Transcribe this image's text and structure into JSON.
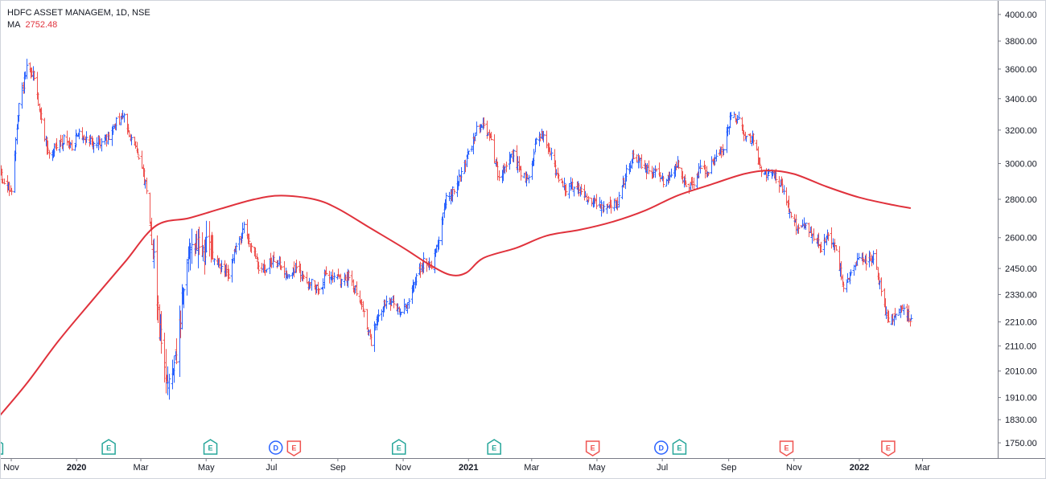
{
  "header": {
    "title": "HDFC ASSET MANAGEM, 1D, NSE",
    "ma_label": "MA",
    "ma_value": "2752.48"
  },
  "colors": {
    "up": "#2962ff",
    "down": "#ef5350",
    "ma": "#e0323c",
    "earnings_up": "#26a69a",
    "earnings_down": "#ef5350",
    "dividend": "#2962ff",
    "axis_border": "#787b86",
    "text": "#131722"
  },
  "chart_data": {
    "type": "ohlc-bar",
    "symbol": "HDFC ASSET MANAGEM",
    "interval": "1D",
    "exchange": "NSE",
    "price_scale": "log",
    "ylim": [
      1700,
      4100
    ],
    "y_ticks": [
      "4000.00",
      "3800.00",
      "3600.00",
      "3400.00",
      "3200.00",
      "3000.00",
      "2800.00",
      "2600.00",
      "2450.00",
      "2330.00",
      "2210.00",
      "2110.00",
      "2010.00",
      "1910.00",
      "1830.00",
      "1750.00"
    ],
    "x_ticks": [
      {
        "label": "Nov",
        "date": "2019-11-01",
        "bold": false
      },
      {
        "label": "2020",
        "date": "2020-01-01",
        "bold": true
      },
      {
        "label": "Mar",
        "date": "2020-03-01",
        "bold": false
      },
      {
        "label": "May",
        "date": "2020-05-01",
        "bold": false
      },
      {
        "label": "Jul",
        "date": "2020-07-01",
        "bold": false
      },
      {
        "label": "Sep",
        "date": "2020-09-01",
        "bold": false
      },
      {
        "label": "Nov",
        "date": "2020-11-01",
        "bold": false
      },
      {
        "label": "2021",
        "date": "2021-01-01",
        "bold": true
      },
      {
        "label": "Mar",
        "date": "2021-03-01",
        "bold": false
      },
      {
        "label": "May",
        "date": "2021-05-01",
        "bold": false
      },
      {
        "label": "Jul",
        "date": "2021-07-01",
        "bold": false
      },
      {
        "label": "Sep",
        "date": "2021-09-01",
        "bold": false
      },
      {
        "label": "Nov",
        "date": "2021-11-01",
        "bold": false
      },
      {
        "label": "2022",
        "date": "2022-01-01",
        "bold": true
      },
      {
        "label": "Mar",
        "date": "2022-03-01",
        "bold": false
      }
    ],
    "close_path": [
      [
        "2019-10-18",
        3050
      ],
      [
        "2019-10-25",
        2880
      ],
      [
        "2019-11-01",
        2850
      ],
      [
        "2019-11-08",
        3350
      ],
      [
        "2019-11-15",
        3600
      ],
      [
        "2019-11-22",
        3550
      ],
      [
        "2019-11-29",
        3250
      ],
      [
        "2019-12-06",
        3050
      ],
      [
        "2019-12-13",
        3100
      ],
      [
        "2019-12-20",
        3150
      ],
      [
        "2019-12-27",
        3100
      ],
      [
        "2020-01-03",
        3180
      ],
      [
        "2020-01-17",
        3120
      ],
      [
        "2020-01-31",
        3150
      ],
      [
        "2020-02-07",
        3250
      ],
      [
        "2020-02-14",
        3280
      ],
      [
        "2020-02-21",
        3150
      ],
      [
        "2020-02-28",
        3050
      ],
      [
        "2020-03-06",
        2850
      ],
      [
        "2020-03-13",
        2500
      ],
      [
        "2020-03-20",
        2100
      ],
      [
        "2020-03-27",
        1950
      ],
      [
        "2020-04-03",
        2050
      ],
      [
        "2020-04-10",
        2350
      ],
      [
        "2020-04-17",
        2600
      ],
      [
        "2020-04-24",
        2550
      ],
      [
        "2020-05-01",
        2550
      ],
      [
        "2020-05-08",
        2500
      ],
      [
        "2020-05-15",
        2450
      ],
      [
        "2020-05-22",
        2420
      ],
      [
        "2020-05-29",
        2550
      ],
      [
        "2020-06-05",
        2650
      ],
      [
        "2020-06-12",
        2560
      ],
      [
        "2020-06-19",
        2450
      ],
      [
        "2020-06-26",
        2450
      ],
      [
        "2020-07-03",
        2500
      ],
      [
        "2020-07-10",
        2450
      ],
      [
        "2020-07-17",
        2420
      ],
      [
        "2020-07-24",
        2450
      ],
      [
        "2020-07-31",
        2400
      ],
      [
        "2020-08-07",
        2380
      ],
      [
        "2020-08-14",
        2350
      ],
      [
        "2020-08-21",
        2420
      ],
      [
        "2020-08-28",
        2430
      ],
      [
        "2020-09-04",
        2380
      ],
      [
        "2020-09-11",
        2420
      ],
      [
        "2020-09-18",
        2350
      ],
      [
        "2020-09-25",
        2250
      ],
      [
        "2020-10-02",
        2120
      ],
      [
        "2020-10-09",
        2250
      ],
      [
        "2020-10-16",
        2300
      ],
      [
        "2020-10-23",
        2280
      ],
      [
        "2020-10-30",
        2250
      ],
      [
        "2020-11-06",
        2300
      ],
      [
        "2020-11-13",
        2420
      ],
      [
        "2020-11-20",
        2480
      ],
      [
        "2020-11-27",
        2470
      ],
      [
        "2020-12-04",
        2600
      ],
      [
        "2020-12-11",
        2800
      ],
      [
        "2020-12-18",
        2850
      ],
      [
        "2020-12-25",
        2950
      ],
      [
        "2021-01-01",
        3050
      ],
      [
        "2021-01-08",
        3200
      ],
      [
        "2021-01-15",
        3250
      ],
      [
        "2021-01-22",
        3120
      ],
      [
        "2021-01-29",
        2900
      ],
      [
        "2021-02-05",
        3000
      ],
      [
        "2021-02-12",
        3050
      ],
      [
        "2021-02-19",
        2950
      ],
      [
        "2021-02-26",
        2900
      ],
      [
        "2021-03-05",
        3150
      ],
      [
        "2021-03-12",
        3180
      ],
      [
        "2021-03-19",
        3050
      ],
      [
        "2021-03-26",
        2900
      ],
      [
        "2021-04-02",
        2850
      ],
      [
        "2021-04-09",
        2880
      ],
      [
        "2021-04-16",
        2850
      ],
      [
        "2021-04-23",
        2800
      ],
      [
        "2021-04-30",
        2780
      ],
      [
        "2021-05-07",
        2750
      ],
      [
        "2021-05-14",
        2750
      ],
      [
        "2021-05-21",
        2800
      ],
      [
        "2021-05-28",
        2950
      ],
      [
        "2021-06-04",
        3050
      ],
      [
        "2021-06-11",
        3000
      ],
      [
        "2021-06-18",
        2950
      ],
      [
        "2021-06-25",
        2950
      ],
      [
        "2021-07-02",
        2900
      ],
      [
        "2021-07-09",
        2950
      ],
      [
        "2021-07-16",
        3000
      ],
      [
        "2021-07-23",
        2850
      ],
      [
        "2021-07-30",
        2900
      ],
      [
        "2021-08-06",
        2980
      ],
      [
        "2021-08-13",
        2950
      ],
      [
        "2021-08-20",
        3050
      ],
      [
        "2021-08-27",
        3100
      ],
      [
        "2021-09-03",
        3300
      ],
      [
        "2021-09-10",
        3250
      ],
      [
        "2021-09-17",
        3150
      ],
      [
        "2021-09-24",
        3150
      ],
      [
        "2021-10-01",
        2950
      ],
      [
        "2021-10-08",
        2950
      ],
      [
        "2021-10-15",
        2920
      ],
      [
        "2021-10-22",
        2850
      ],
      [
        "2021-10-29",
        2700
      ],
      [
        "2021-11-05",
        2650
      ],
      [
        "2021-11-12",
        2680
      ],
      [
        "2021-11-19",
        2600
      ],
      [
        "2021-11-26",
        2550
      ],
      [
        "2021-12-03",
        2600
      ],
      [
        "2021-12-10",
        2550
      ],
      [
        "2021-12-17",
        2350
      ],
      [
        "2021-12-24",
        2420
      ],
      [
        "2021-12-31",
        2500
      ],
      [
        "2022-01-07",
        2480
      ],
      [
        "2022-01-14",
        2510
      ],
      [
        "2022-01-21",
        2350
      ],
      [
        "2022-01-28",
        2200
      ],
      [
        "2022-02-04",
        2250
      ],
      [
        "2022-02-11",
        2280
      ],
      [
        "2022-02-18",
        2210
      ]
    ],
    "moving_average": {
      "label": "MA",
      "last_value": 2752.48,
      "points": [
        [
          "2019-10-18",
          1830
        ],
        [
          "2019-11-15",
          1960
        ],
        [
          "2019-12-15",
          2130
        ],
        [
          "2020-01-15",
          2300
        ],
        [
          "2020-02-15",
          2480
        ],
        [
          "2020-03-15",
          2660
        ],
        [
          "2020-04-15",
          2700
        ],
        [
          "2020-05-15",
          2750
        ],
        [
          "2020-06-15",
          2800
        ],
        [
          "2020-07-10",
          2820
        ],
        [
          "2020-08-10",
          2800
        ],
        [
          "2020-09-01",
          2750
        ],
        [
          "2020-10-01",
          2650
        ],
        [
          "2020-11-01",
          2550
        ],
        [
          "2020-11-25",
          2470
        ],
        [
          "2020-12-15",
          2420
        ],
        [
          "2020-12-30",
          2430
        ],
        [
          "2021-01-15",
          2500
        ],
        [
          "2021-02-15",
          2550
        ],
        [
          "2021-03-15",
          2610
        ],
        [
          "2021-04-15",
          2640
        ],
        [
          "2021-05-15",
          2680
        ],
        [
          "2021-06-15",
          2740
        ],
        [
          "2021-07-15",
          2820
        ],
        [
          "2021-08-15",
          2880
        ],
        [
          "2021-09-15",
          2940
        ],
        [
          "2021-10-08",
          2960
        ],
        [
          "2021-11-01",
          2940
        ],
        [
          "2021-12-01",
          2870
        ],
        [
          "2022-01-01",
          2810
        ],
        [
          "2022-02-01",
          2770
        ],
        [
          "2022-02-18",
          2752.48
        ]
      ]
    },
    "events": [
      {
        "type": "E",
        "date": "2019-10-18",
        "kind": "earnings-up"
      },
      {
        "type": "E",
        "date": "2020-01-31",
        "kind": "earnings-up"
      },
      {
        "type": "E",
        "date": "2020-05-05",
        "kind": "earnings-up"
      },
      {
        "type": "D",
        "date": "2020-07-05",
        "kind": "dividend"
      },
      {
        "type": "E",
        "date": "2020-07-22",
        "kind": "earnings-down"
      },
      {
        "type": "E",
        "date": "2020-10-28",
        "kind": "earnings-up"
      },
      {
        "type": "E",
        "date": "2021-01-25",
        "kind": "earnings-up"
      },
      {
        "type": "E",
        "date": "2021-04-27",
        "kind": "earnings-down"
      },
      {
        "type": "D",
        "date": "2021-06-30",
        "kind": "dividend"
      },
      {
        "type": "E",
        "date": "2021-07-17",
        "kind": "earnings-up"
      },
      {
        "type": "E",
        "date": "2021-10-25",
        "kind": "earnings-down"
      },
      {
        "type": "E",
        "date": "2022-01-28",
        "kind": "earnings-down"
      }
    ]
  }
}
